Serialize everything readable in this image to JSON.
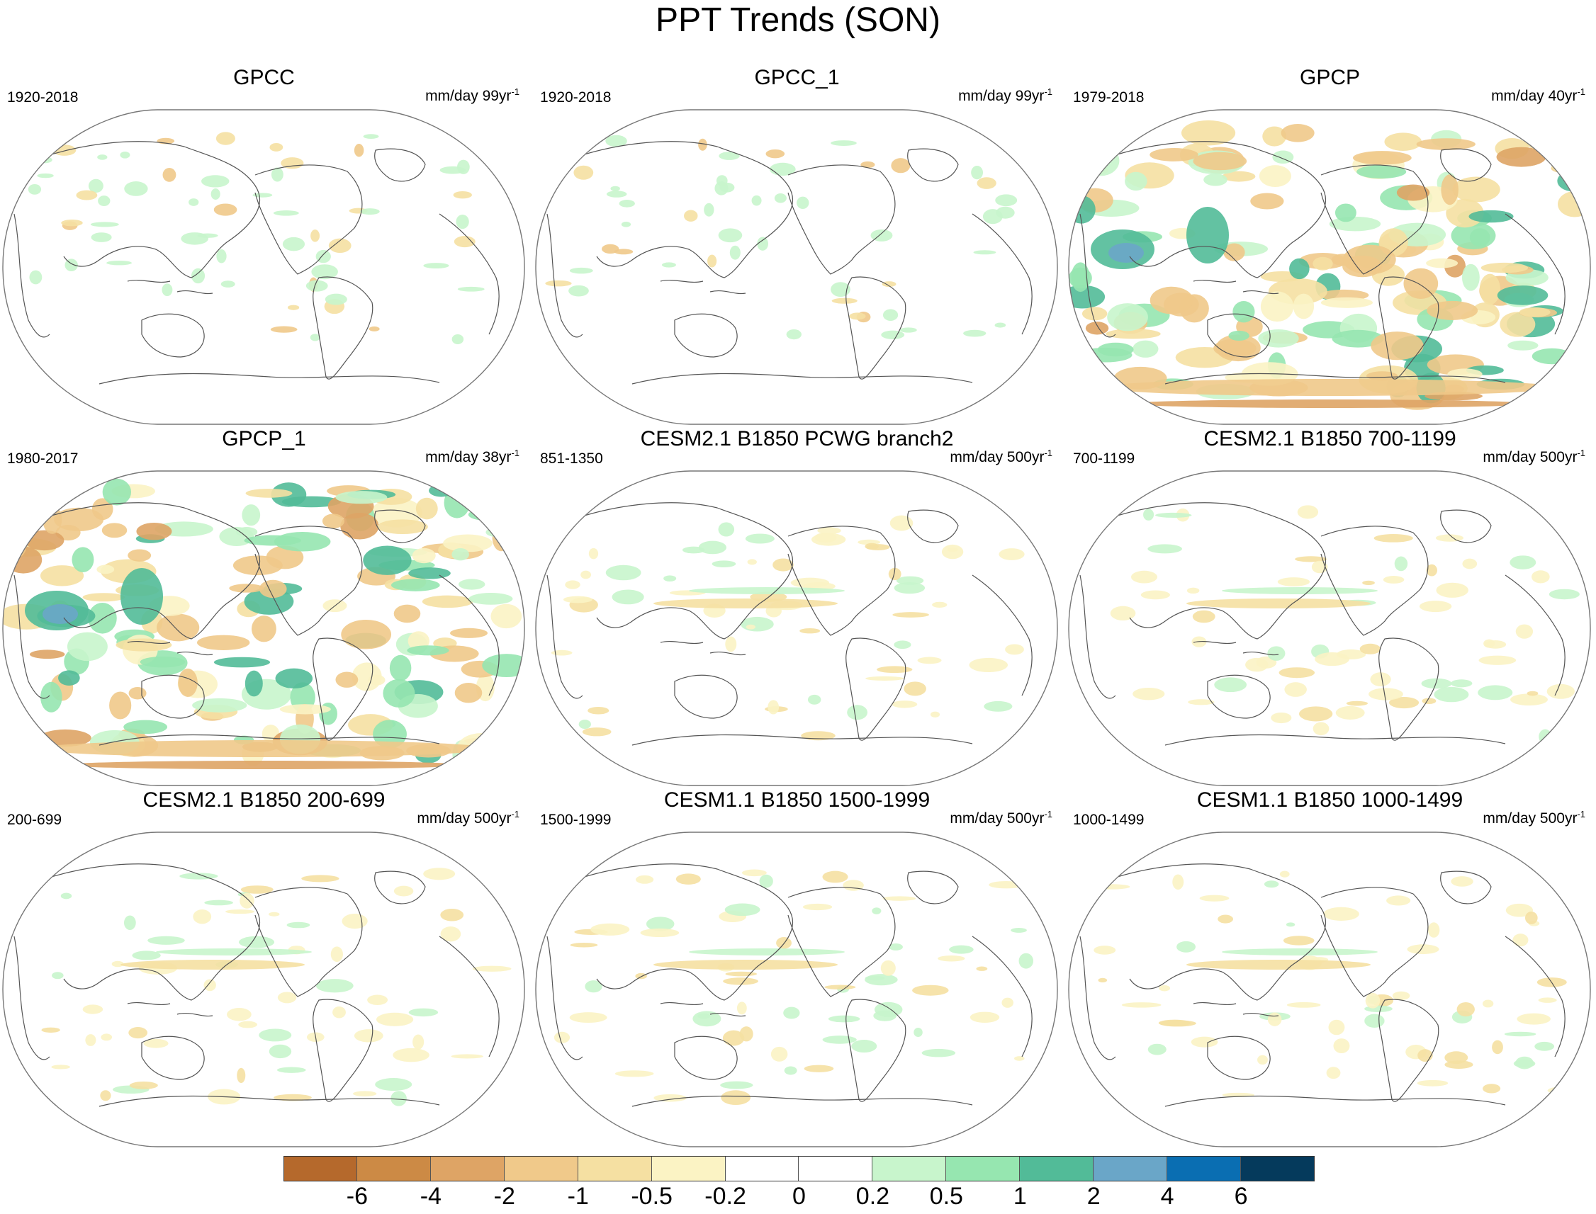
{
  "title": "PPT Trends (SON)",
  "panels": [
    {
      "title": "GPCC",
      "period": "1920-2018",
      "units": "mm/day 99yr",
      "units_exp": "-1",
      "pattern": "sparse-land"
    },
    {
      "title": "GPCC_1",
      "period": "1920-2018",
      "units": "mm/day 99yr",
      "units_exp": "-1",
      "pattern": "sparse-land"
    },
    {
      "title": "GPCP",
      "period": "1979-2018",
      "units": "mm/day 40yr",
      "units_exp": "-1",
      "pattern": "strong-global"
    },
    {
      "title": "GPCP_1",
      "period": "1980-2017",
      "units": "mm/day 38yr",
      "units_exp": "-1",
      "pattern": "strong-global"
    },
    {
      "title": "CESM2.1 B1850 PCWG branch2",
      "period": "851-1350",
      "units": "mm/day 500yr",
      "units_exp": "-1",
      "pattern": "weak-tropical"
    },
    {
      "title": "CESM2.1 B1850 700-1199",
      "period": "700-1199",
      "units": "mm/day 500yr",
      "units_exp": "-1",
      "pattern": "weak-tropical"
    },
    {
      "title": "CESM2.1 B1850 200-699",
      "period": "200-699",
      "units": "mm/day 500yr",
      "units_exp": "-1",
      "pattern": "weak-tropical"
    },
    {
      "title": "CESM1.1 B1850 1500-1999",
      "period": "1500-1999",
      "units": "mm/day 500yr",
      "units_exp": "-1",
      "pattern": "weak-tropical"
    },
    {
      "title": "CESM1.1 B1850 1000-1499",
      "period": "1000-1499",
      "units": "mm/day 500yr",
      "units_exp": "-1",
      "pattern": "weak-tropical"
    }
  ],
  "colorbar": {
    "colors": [
      "#b5692c",
      "#cc8a45",
      "#dea465",
      "#f0c98a",
      "#f5e0a2",
      "#fbf3c4",
      "#ffffff",
      "#ffffff",
      "#c8f5cc",
      "#96e6b0",
      "#52bb98",
      "#6aa6c8",
      "#0a6eb2",
      "#053a5c"
    ],
    "labels": [
      "-6",
      "-4",
      "-2",
      "-1",
      "-0.5",
      "-0.2",
      "0",
      "0.2",
      "0.5",
      "1",
      "2",
      "4",
      "6"
    ]
  }
}
